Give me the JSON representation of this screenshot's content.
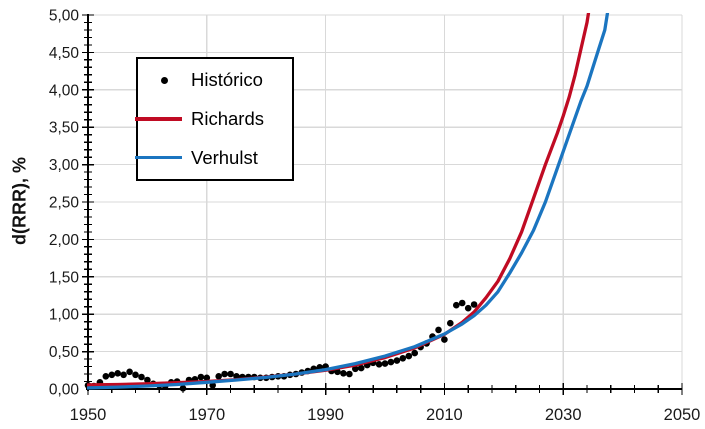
{
  "chart_data": {
    "type": "scatter",
    "title": "",
    "xlabel": "",
    "ylabel": "d(RRR), %",
    "xlim": [
      1950,
      2050
    ],
    "ylim": [
      0,
      5
    ],
    "x_major_ticks": [
      1950,
      1970,
      1990,
      2010,
      2030,
      2050
    ],
    "x_tick_labels": [
      "1950",
      "1970",
      "1990",
      "2010",
      "2030",
      "2050"
    ],
    "x_minor_step_years": 4,
    "y_major_step": 0.5,
    "y_minor_step": 0.1,
    "y_tick_labels": [
      "0,00",
      "0,50",
      "1,00",
      "1,50",
      "2,00",
      "2,50",
      "3,00",
      "3,50",
      "4,00",
      "4,50",
      "5,00"
    ],
    "grid": true,
    "legend_position": "upper-left-inside",
    "colors": {
      "grid": "#D9D9D9",
      "axis": "#000000",
      "text": "#1a1a1a",
      "historico": "#000000",
      "richards": "#C00B23",
      "verhulst": "#1B75C0"
    },
    "series": [
      {
        "name": "Histórico",
        "slug": "historico",
        "type": "scatter",
        "color": "#000000",
        "points": [
          [
            1950,
            0.05
          ],
          [
            1951,
            0.04
          ],
          [
            1952,
            0.09
          ],
          [
            1953,
            0.17
          ],
          [
            1954,
            0.19
          ],
          [
            1955,
            0.21
          ],
          [
            1956,
            0.19
          ],
          [
            1957,
            0.23
          ],
          [
            1958,
            0.19
          ],
          [
            1959,
            0.16
          ],
          [
            1960,
            0.12
          ],
          [
            1961,
            0.07
          ],
          [
            1962,
            0.05
          ],
          [
            1963,
            0.04
          ],
          [
            1964,
            0.09
          ],
          [
            1965,
            0.1
          ],
          [
            1966,
            0.01
          ],
          [
            1967,
            0.12
          ],
          [
            1968,
            0.13
          ],
          [
            1969,
            0.16
          ],
          [
            1970,
            0.15
          ],
          [
            1971,
            0.05
          ],
          [
            1972,
            0.17
          ],
          [
            1973,
            0.2
          ],
          [
            1974,
            0.2
          ],
          [
            1975,
            0.17
          ],
          [
            1976,
            0.16
          ],
          [
            1977,
            0.16
          ],
          [
            1978,
            0.16
          ],
          [
            1979,
            0.15
          ],
          [
            1980,
            0.15
          ],
          [
            1981,
            0.16
          ],
          [
            1982,
            0.17
          ],
          [
            1983,
            0.17
          ],
          [
            1984,
            0.19
          ],
          [
            1985,
            0.2
          ],
          [
            1986,
            0.22
          ],
          [
            1987,
            0.24
          ],
          [
            1988,
            0.27
          ],
          [
            1989,
            0.29
          ],
          [
            1990,
            0.3
          ],
          [
            1991,
            0.24
          ],
          [
            1992,
            0.23
          ],
          [
            1993,
            0.21
          ],
          [
            1994,
            0.2
          ],
          [
            1995,
            0.27
          ],
          [
            1996,
            0.28
          ],
          [
            1997,
            0.32
          ],
          [
            1998,
            0.35
          ],
          [
            1999,
            0.33
          ],
          [
            2000,
            0.34
          ],
          [
            2001,
            0.36
          ],
          [
            2002,
            0.38
          ],
          [
            2003,
            0.41
          ],
          [
            2004,
            0.44
          ],
          [
            2005,
            0.48
          ],
          [
            2006,
            0.56
          ],
          [
            2007,
            0.61
          ],
          [
            2008,
            0.7
          ],
          [
            2009,
            0.79
          ],
          [
            2010,
            0.66
          ],
          [
            2011,
            0.88
          ],
          [
            2012,
            1.12
          ],
          [
            2013,
            1.15
          ],
          [
            2014,
            1.08
          ],
          [
            2015,
            1.13
          ]
        ]
      },
      {
        "name": "Richards",
        "slug": "richards",
        "type": "line",
        "color": "#C00B23",
        "points": [
          [
            1950,
            0.055
          ],
          [
            1955,
            0.06
          ],
          [
            1960,
            0.07
          ],
          [
            1965,
            0.085
          ],
          [
            1970,
            0.1
          ],
          [
            1975,
            0.125
          ],
          [
            1980,
            0.16
          ],
          [
            1985,
            0.2
          ],
          [
            1990,
            0.25
          ],
          [
            1995,
            0.32
          ],
          [
            2000,
            0.42
          ],
          [
            2005,
            0.55
          ],
          [
            2010,
            0.73
          ],
          [
            2013,
            0.89
          ],
          [
            2015,
            1.03
          ],
          [
            2017,
            1.22
          ],
          [
            2019,
            1.44
          ],
          [
            2021,
            1.74
          ],
          [
            2023,
            2.1
          ],
          [
            2025,
            2.55
          ],
          [
            2027,
            3.0
          ],
          [
            2029,
            3.42
          ],
          [
            2030,
            3.65
          ],
          [
            2031,
            3.9
          ],
          [
            2032,
            4.2
          ],
          [
            2033,
            4.55
          ],
          [
            2034,
            4.9
          ],
          [
            2035,
            5.4
          ]
        ]
      },
      {
        "name": "Verhulst",
        "slug": "verhulst",
        "type": "line",
        "color": "#1B75C0",
        "points": [
          [
            1950,
            0.015
          ],
          [
            1955,
            0.025
          ],
          [
            1960,
            0.04
          ],
          [
            1965,
            0.06
          ],
          [
            1970,
            0.09
          ],
          [
            1975,
            0.12
          ],
          [
            1980,
            0.155
          ],
          [
            1985,
            0.2
          ],
          [
            1990,
            0.26
          ],
          [
            1995,
            0.34
          ],
          [
            2000,
            0.44
          ],
          [
            2005,
            0.565
          ],
          [
            2010,
            0.735
          ],
          [
            2013,
            0.87
          ],
          [
            2015,
            0.98
          ],
          [
            2017,
            1.12
          ],
          [
            2019,
            1.3
          ],
          [
            2021,
            1.55
          ],
          [
            2023,
            1.82
          ],
          [
            2025,
            2.12
          ],
          [
            2027,
            2.5
          ],
          [
            2029,
            2.95
          ],
          [
            2031,
            3.4
          ],
          [
            2033,
            3.85
          ],
          [
            2034,
            4.05
          ],
          [
            2035,
            4.3
          ],
          [
            2036,
            4.55
          ],
          [
            2037,
            4.8
          ],
          [
            2038,
            5.3
          ]
        ]
      }
    ]
  }
}
